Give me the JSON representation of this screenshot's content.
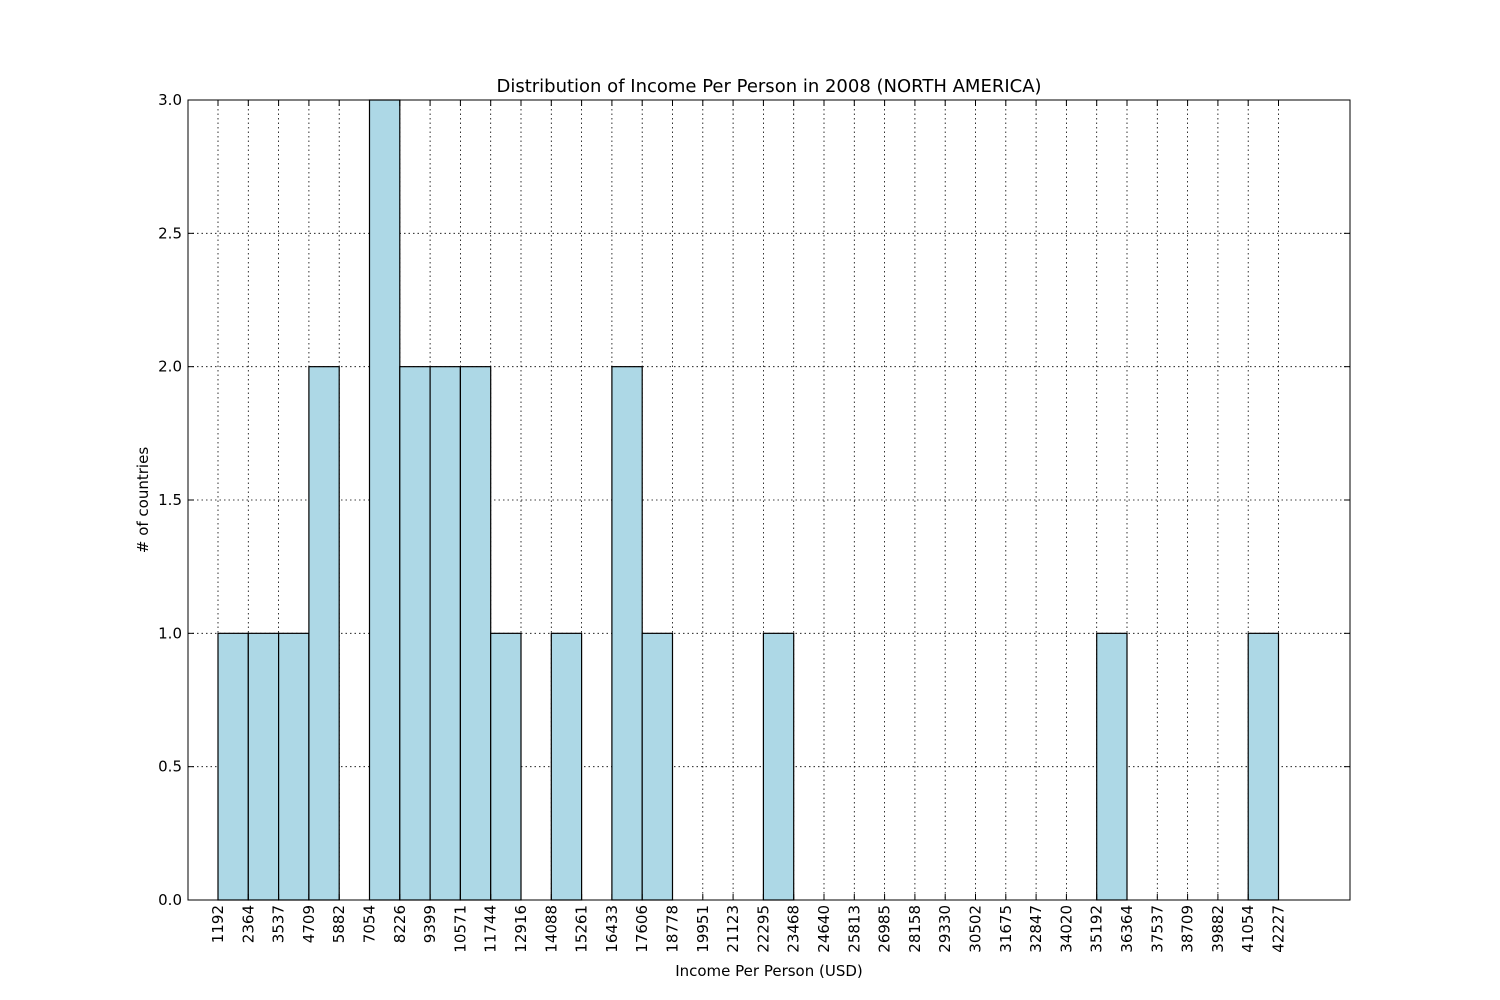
{
  "chart_data": {
    "type": "bar",
    "title": "Distribution of Income Per Person in 2008 (NORTH AMERICA)",
    "xlabel": "Income Per Person (USD)",
    "ylabel": "# of countries",
    "ylim": [
      0,
      3
    ],
    "yticks": [
      "0.0",
      "0.5",
      "1.0",
      "1.5",
      "2.0",
      "2.5",
      "3.0"
    ],
    "bin_edges": [
      1192,
      2364,
      3537,
      4709,
      5882,
      7054,
      8226,
      9399,
      10571,
      11744,
      12916,
      14088,
      15261,
      16433,
      17606,
      18778,
      19951,
      21123,
      22295,
      23468,
      24640,
      25813,
      26985,
      28158,
      29330,
      30502,
      31675,
      32847,
      34020,
      35192,
      36364,
      37537,
      38709,
      39882,
      41054,
      42227
    ],
    "values": [
      1,
      1,
      1,
      2,
      0,
      3,
      2,
      2,
      2,
      1,
      0,
      1,
      0,
      2,
      1,
      0,
      0,
      0,
      1,
      0,
      0,
      0,
      0,
      0,
      0,
      0,
      0,
      0,
      0,
      1,
      0,
      0,
      0,
      0,
      1
    ],
    "grid": true,
    "bar_color": "#add8e6",
    "edge_color": "#000000"
  }
}
